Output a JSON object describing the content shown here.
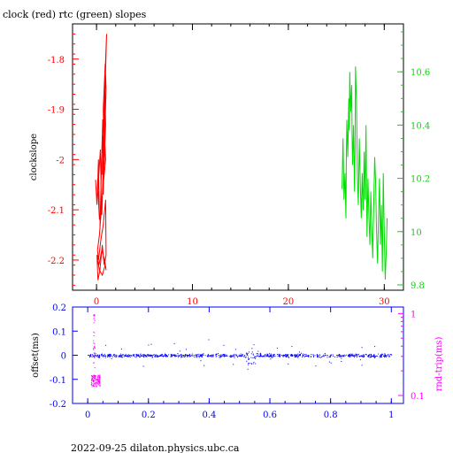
{
  "title": "clock (red) rtc (green) slopes",
  "footer": "2022-09-25  dilaton.physics.ubc.ca",
  "colors": {
    "axis": "#000000",
    "clock": "#ff0000",
    "rtc": "#00dd00",
    "offset": "#0000ff",
    "rndtrip": "#ff00ff"
  },
  "chart_data": [
    {
      "type": "line",
      "ylabel": "clockslope",
      "y2label": "",
      "xlim": [
        -2.5,
        32
      ],
      "ylim": [
        -2.26,
        -1.73
      ],
      "y2lim": [
        9.78,
        10.78
      ],
      "xticks": [
        0,
        10,
        20,
        30
      ],
      "yticks": [
        -1.8,
        -1.9,
        -2.0,
        -2.1,
        -2.2
      ],
      "ytick_labels": [
        "-1.8",
        "-1.9",
        "-2",
        "-2.1",
        "-2.2"
      ],
      "y2ticks": [
        9.8,
        10.0,
        10.2,
        10.4,
        10.6
      ],
      "y2tick_labels": [
        "9.8",
        "10",
        "10.2",
        "10.4",
        "10.6"
      ],
      "series": [
        {
          "name": "clock",
          "axis": "left",
          "x": [
            -0.1,
            0.05,
            0.2,
            0.3,
            0.15,
            0.4,
            0.5,
            0.35,
            0.6,
            0.7,
            0.55,
            0.45,
            0.65,
            0.8,
            0.7,
            0.9,
            0.75,
            0.6,
            0.85,
            0.95,
            0.8,
            0.7,
            0.9,
            1.0,
            0.85,
            0.75,
            0.95,
            1.05,
            0.9,
            0.8,
            0.95,
            0.65,
            0.5,
            0.3,
            0.1,
            0.2,
            0.45,
            0.7,
            0.95,
            1.0,
            0.8,
            0.6,
            0.35,
            0.15,
            0.05,
            0.25,
            0.55,
            0.85,
            1.0,
            0.9,
            0.6,
            0.3,
            0.1
          ],
          "y": [
            -2.04,
            -2.09,
            -2.0,
            -2.12,
            -2.06,
            -1.98,
            -2.08,
            -2.14,
            -1.95,
            -2.02,
            -2.11,
            -2.05,
            -1.92,
            -1.99,
            -2.07,
            -1.88,
            -1.97,
            -2.03,
            -1.84,
            -1.93,
            -2.01,
            -1.9,
            -1.81,
            -1.86,
            -1.96,
            -1.89,
            -1.8,
            -1.75,
            -1.85,
            -1.94,
            -2.0,
            -2.06,
            -2.1,
            -2.15,
            -2.18,
            -2.2,
            -2.16,
            -2.13,
            -2.08,
            -2.19,
            -2.21,
            -2.17,
            -2.22,
            -2.24,
            -2.19,
            -2.21,
            -2.18,
            -2.2,
            -2.22,
            -2.21,
            -2.23,
            -2.22,
            -2.2
          ]
        },
        {
          "name": "rtc",
          "axis": "right",
          "x": [
            25.6,
            25.7,
            25.8,
            25.9,
            26.0,
            26.05,
            26.1,
            26.2,
            26.3,
            26.35,
            26.4,
            26.5,
            26.6,
            26.65,
            26.7,
            26.8,
            26.9,
            26.95,
            27.0,
            27.1,
            27.2,
            27.3,
            27.4,
            27.5,
            27.6,
            27.7,
            27.8,
            27.9,
            28.0,
            28.1,
            28.2,
            28.3,
            28.4,
            28.5,
            28.6,
            28.7,
            28.8,
            28.9,
            29.0,
            29.1,
            29.2,
            29.3,
            29.4,
            29.5,
            29.6,
            29.7,
            29.8,
            29.9,
            30.0,
            30.1,
            30.2,
            30.3
          ],
          "y": [
            10.16,
            10.35,
            10.12,
            10.22,
            10.05,
            10.3,
            10.42,
            10.28,
            10.5,
            10.38,
            10.6,
            10.45,
            10.55,
            10.35,
            10.25,
            10.4,
            10.15,
            10.3,
            10.62,
            10.5,
            10.2,
            10.1,
            10.35,
            10.18,
            10.05,
            10.22,
            10.08,
            10.3,
            10.12,
            10.4,
            9.98,
            10.2,
            10.05,
            9.95,
            10.15,
            10.02,
            9.9,
            10.1,
            10.28,
            10.18,
            10.0,
            9.88,
            10.05,
            10.2,
            9.95,
            10.1,
            9.85,
            10.22,
            10.0,
            9.82,
            9.92,
            10.05
          ]
        }
      ]
    },
    {
      "type": "scatter",
      "ylabel": "offset(ms)",
      "y2label": "rnd-trip(ms)",
      "xlim": [
        -0.05,
        1.04
      ],
      "ylim": [
        -0.2,
        0.2
      ],
      "y2lim": [
        0.08,
        1.2
      ],
      "y2scale": "log",
      "xticks": [
        0,
        0.2,
        0.4,
        0.6,
        0.8,
        1
      ],
      "xtick_labels": [
        "0",
        "0.2",
        "0.4",
        "0.6",
        "0.8",
        "1"
      ],
      "yticks": [
        0.2,
        0.1,
        0,
        -0.1,
        -0.2
      ],
      "ytick_labels": [
        "0.2",
        "0.1",
        "0",
        "-0.1",
        "-0.2"
      ],
      "y2ticks": [
        1,
        0.1
      ],
      "y2tick_labels": [
        "1",
        "0.1"
      ],
      "series": [
        {
          "name": "offset",
          "axis": "left",
          "x": [],
          "y": []
        },
        {
          "name": "rnd-trip",
          "axis": "right",
          "x": [],
          "y": []
        }
      ]
    }
  ]
}
